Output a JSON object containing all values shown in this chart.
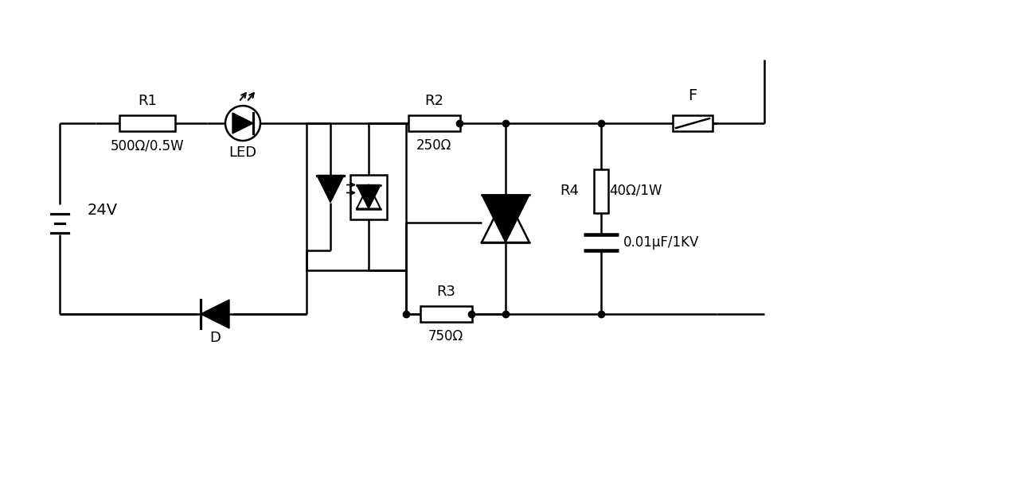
{
  "bg_color": "#ffffff",
  "line_color": "#000000",
  "lw": 1.8,
  "figsize": [
    13.0,
    6.0
  ],
  "dpi": 100,
  "xlim": [
    0,
    1300
  ],
  "ylim": [
    0,
    600
  ],
  "labels": {
    "R1": "R1",
    "R1sub": "500Ω/0.5W",
    "R2": "R2",
    "R2sub": "250Ω",
    "R3": "R3",
    "R3sub": "750Ω",
    "R4": "R4",
    "R4sub": "40Ω/1W",
    "C_sub": "0.01μF/1KV",
    "bat": "24V",
    "D": "D",
    "LED": "LED",
    "F": "F"
  }
}
